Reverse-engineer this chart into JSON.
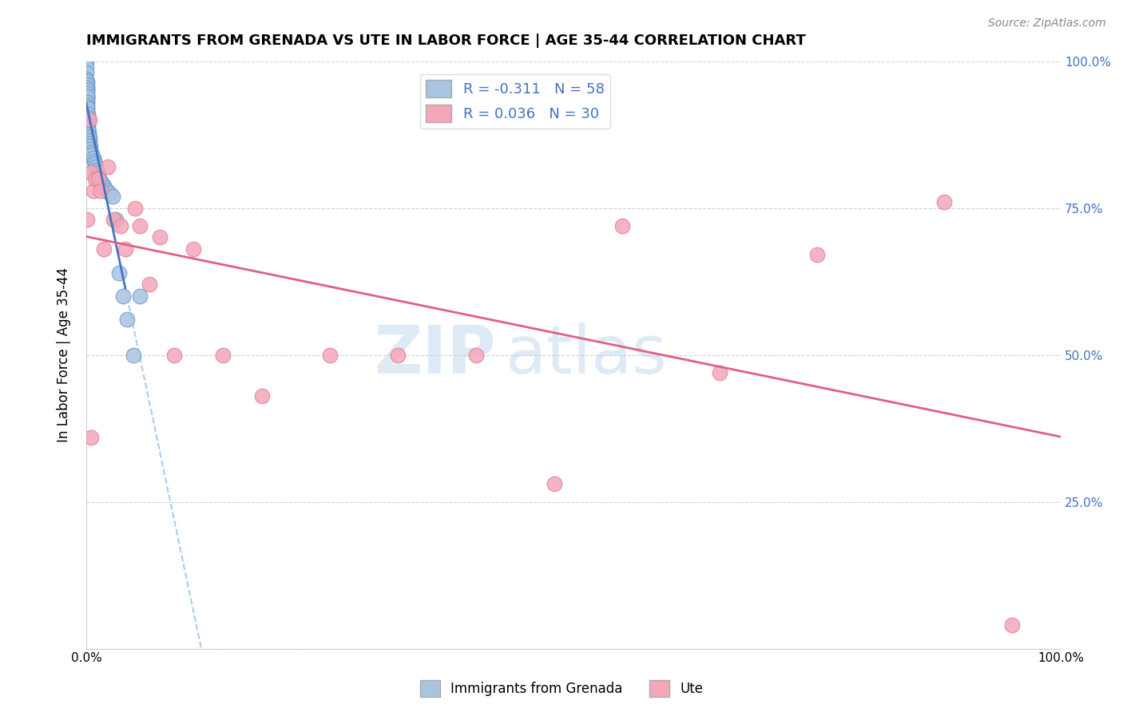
{
  "title": "IMMIGRANTS FROM GRENADA VS UTE IN LABOR FORCE | AGE 35-44 CORRELATION CHART",
  "source": "Source: ZipAtlas.com",
  "ylabel": "In Labor Force | Age 35-44",
  "xlim": [
    0,
    1.0
  ],
  "ylim": [
    0,
    1.0
  ],
  "blue_color": "#a8c4e0",
  "pink_color": "#f4a7b9",
  "blue_line_color": "#4472c4",
  "pink_line_color": "#e06080",
  "blue_marker_edge": "#6699cc",
  "pink_marker_edge": "#e08090",
  "watermark_zip": "ZIP",
  "watermark_atlas": "atlas",
  "background_color": "#ffffff",
  "grid_color": "#cccccc",
  "right_ytick_color": "#4472c4",
  "blue_scatter_x": [
    0.0002,
    0.0002,
    0.0003,
    0.0003,
    0.0004,
    0.0004,
    0.0005,
    0.0005,
    0.0005,
    0.0006,
    0.0006,
    0.0007,
    0.0007,
    0.0008,
    0.0008,
    0.0009,
    0.0009,
    0.001,
    0.001,
    0.001,
    0.001,
    0.001,
    0.0012,
    0.0013,
    0.0014,
    0.0015,
    0.0016,
    0.0018,
    0.002,
    0.002,
    0.0022,
    0.0025,
    0.003,
    0.0032,
    0.0035,
    0.004,
    0.0045,
    0.005,
    0.006,
    0.007,
    0.008,
    0.009,
    0.01,
    0.011,
    0.012,
    0.013,
    0.015,
    0.017,
    0.019,
    0.021,
    0.024,
    0.027,
    0.03,
    0.034,
    0.038,
    0.042,
    0.048,
    0.055
  ],
  "blue_scatter_y": [
    1.0,
    0.99,
    0.98,
    0.97,
    0.965,
    0.96,
    0.955,
    0.95,
    0.94,
    0.965,
    0.96,
    0.955,
    0.95,
    0.945,
    0.94,
    0.935,
    0.93,
    0.94,
    0.93,
    0.925,
    0.92,
    0.915,
    0.92,
    0.91,
    0.905,
    0.9,
    0.895,
    0.89,
    0.895,
    0.885,
    0.88,
    0.875,
    0.87,
    0.865,
    0.86,
    0.855,
    0.85,
    0.845,
    0.84,
    0.835,
    0.83,
    0.825,
    0.82,
    0.815,
    0.81,
    0.8,
    0.795,
    0.79,
    0.785,
    0.78,
    0.775,
    0.77,
    0.73,
    0.64,
    0.6,
    0.56,
    0.5,
    0.6
  ],
  "pink_scatter_x": [
    0.001,
    0.003,
    0.005,
    0.007,
    0.009,
    0.012,
    0.015,
    0.018,
    0.022,
    0.028,
    0.035,
    0.04,
    0.05,
    0.055,
    0.065,
    0.075,
    0.09,
    0.11,
    0.14,
    0.18,
    0.25,
    0.32,
    0.4,
    0.48,
    0.55,
    0.65,
    0.75,
    0.88,
    0.95,
    0.005
  ],
  "pink_scatter_y": [
    0.73,
    0.9,
    0.81,
    0.78,
    0.8,
    0.8,
    0.78,
    0.68,
    0.82,
    0.73,
    0.72,
    0.68,
    0.75,
    0.72,
    0.62,
    0.7,
    0.5,
    0.68,
    0.5,
    0.43,
    0.5,
    0.5,
    0.5,
    0.28,
    0.72,
    0.47,
    0.67,
    0.76,
    0.04,
    0.36
  ]
}
